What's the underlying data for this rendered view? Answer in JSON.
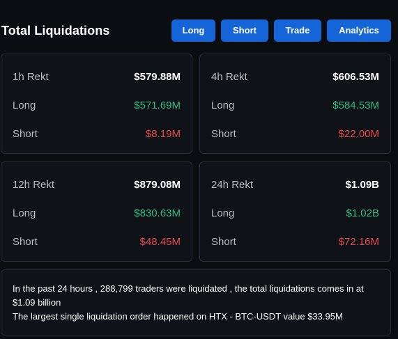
{
  "header": {
    "title": "Total Liquidations",
    "buttons": {
      "long": "Long",
      "short": "Short",
      "trade": "Trade",
      "analytics": "Analytics"
    }
  },
  "colors": {
    "background": "#0b0e11",
    "button": "#1565d8",
    "long": "#2ebd85",
    "short": "#e5484d"
  },
  "cards": [
    {
      "period": "1h Rekt",
      "total": "$579.88M",
      "long_label": "Long",
      "long": "$571.69M",
      "short_label": "Short",
      "short": "$8.19M"
    },
    {
      "period": "4h Rekt",
      "total": "$606.53M",
      "long_label": "Long",
      "long": "$584.53M",
      "short_label": "Short",
      "short": "$22.00M"
    },
    {
      "period": "12h Rekt",
      "total": "$879.08M",
      "long_label": "Long",
      "long": "$830.63M",
      "short_label": "Short",
      "short": "$48.45M"
    },
    {
      "period": "24h Rekt",
      "total": "$1.09B",
      "long_label": "Long",
      "long": "$1.02B",
      "short_label": "Short",
      "short": "$72.16M"
    }
  ],
  "summary": {
    "line1": "In the past 24 hours , 288,799 traders were liquidated , the total liquidations comes in at $1.09 billion",
    "line2": "The largest single liquidation order happened on HTX - BTC-USDT value $33.95M"
  }
}
